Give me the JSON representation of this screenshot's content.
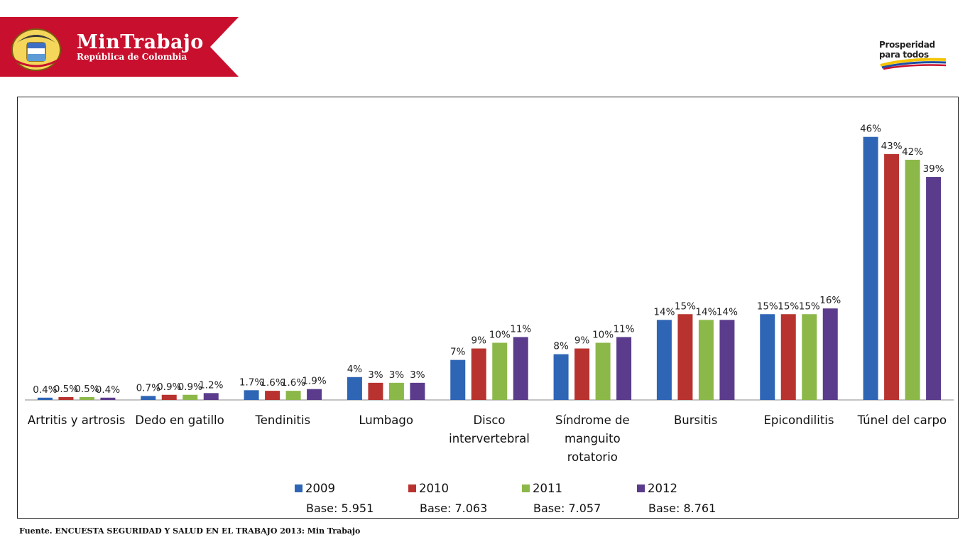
{
  "header": {
    "brand_title": "MinTrabajo",
    "brand_subtitle": "República de Colombia",
    "brand_color": "#c8102e",
    "right_logo_line1": "Prosperidad",
    "right_logo_line2": "para todos"
  },
  "chart_data": {
    "type": "bar",
    "title": "",
    "xlabel": "",
    "ylabel": "",
    "ylim": [
      0,
      50
    ],
    "grid": false,
    "legend_position": "bottom",
    "categories": [
      [
        "Artritis y artrosis"
      ],
      [
        "Dedo en gatillo"
      ],
      [
        "Tendinitis"
      ],
      [
        "Lumbago"
      ],
      [
        "Disco",
        "intervertebral"
      ],
      [
        "Síndrome de",
        "manguito",
        "rotatorio"
      ],
      [
        "Bursitis"
      ],
      [
        "Epicondilitis"
      ],
      [
        "Túnel del carpo"
      ]
    ],
    "series": [
      {
        "name": "2009",
        "base": "Base: 5.951",
        "color": "#2e65b5",
        "values": [
          0.4,
          0.7,
          1.7,
          4,
          7,
          8,
          14,
          15,
          46
        ],
        "labels": [
          "0.4%",
          "0.7%",
          "1.7%",
          "4%",
          "7%",
          "8%",
          "14%",
          "15%",
          "46%"
        ]
      },
      {
        "name": "2010",
        "base": "Base: 7.063",
        "color": "#b8332f",
        "values": [
          0.5,
          0.9,
          1.6,
          3,
          9,
          9,
          15,
          15,
          43
        ],
        "labels": [
          "0.5%",
          "0.9%",
          "1.6%",
          "3%",
          "9%",
          "9%",
          "15%",
          "15%",
          "43%"
        ]
      },
      {
        "name": "2011",
        "base": "Base: 7.057",
        "color": "#8cb84a",
        "values": [
          0.5,
          0.9,
          1.6,
          3,
          10,
          10,
          14,
          15,
          42
        ],
        "labels": [
          "0.5%",
          "0.9%",
          "1.6%",
          "3%",
          "10%",
          "10%",
          "14%",
          "15%",
          "42%"
        ]
      },
      {
        "name": "2012",
        "base": "Base: 8.761",
        "color": "#5b3c8c",
        "values": [
          0.4,
          1.2,
          1.9,
          3,
          11,
          11,
          14,
          16,
          39
        ],
        "labels": [
          "0.4%",
          "1.2%",
          "1.9%",
          "3%",
          "11%",
          "11%",
          "14%",
          "16%",
          "39%"
        ]
      }
    ]
  },
  "footnote": "Fuente. ENCUESTA SEGURIDAD Y SALUD EN EL TRABAJO 2013: Min Trabajo"
}
